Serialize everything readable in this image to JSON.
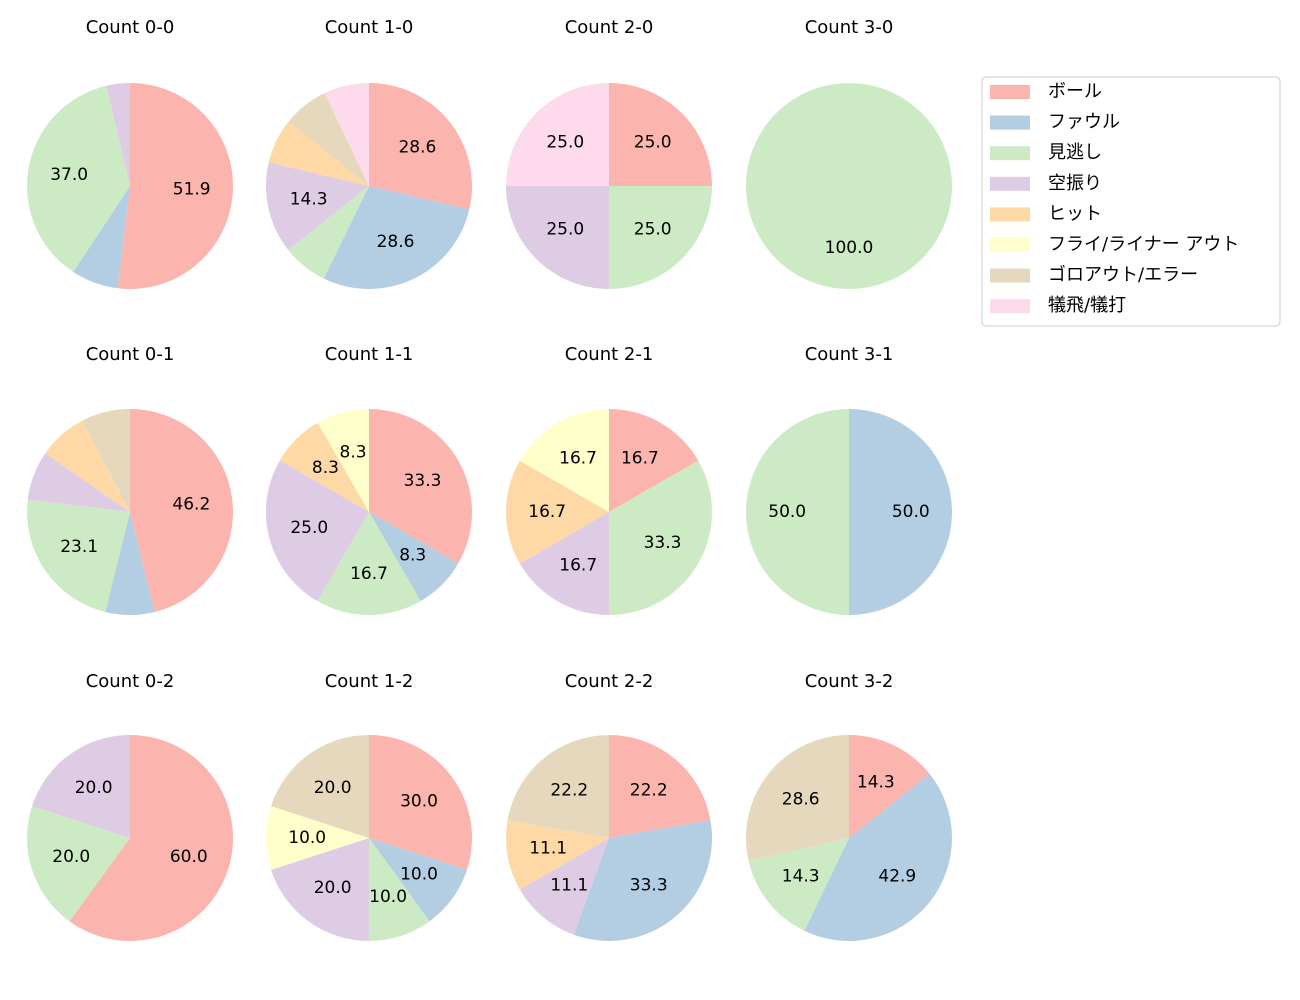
{
  "legend": {
    "items": [
      {
        "name": "ボール",
        "color": "#fbb4ae"
      },
      {
        "name": "ファウル",
        "color": "#b3cde3"
      },
      {
        "name": "見逃し",
        "color": "#ccebc5"
      },
      {
        "name": "空振り",
        "color": "#decbe4"
      },
      {
        "name": "ヒット",
        "color": "#fed9a6"
      },
      {
        "name": "フライ/ライナー アウト",
        "color": "#ffffcc"
      },
      {
        "name": "ゴロアウト/エラー",
        "color": "#e5d8bd"
      },
      {
        "name": "犠飛/犠打",
        "color": "#fddaec"
      }
    ]
  },
  "chart_data": [
    {
      "type": "pie",
      "title": "Count 0-0",
      "categories": [
        "ボール",
        "ファウル",
        "見逃し",
        "空振り"
      ],
      "values": [
        51.9,
        7.4,
        37.0,
        3.7
      ],
      "value_labels": [
        "51.9",
        null,
        "37.0",
        null
      ]
    },
    {
      "type": "pie",
      "title": "Count 1-0",
      "categories": [
        "ボール",
        "ファウル",
        "見逃し",
        "空振り",
        "ヒット",
        "ゴロアウト/エラー",
        "犠飛/犠打"
      ],
      "values": [
        28.6,
        28.6,
        7.1,
        14.3,
        7.1,
        7.1,
        7.1
      ],
      "value_labels": [
        "28.6",
        "28.6",
        null,
        "14.3",
        null,
        null,
        null
      ]
    },
    {
      "type": "pie",
      "title": "Count 2-0",
      "categories": [
        "ボール",
        "見逃し",
        "空振り",
        "犠飛/犠打"
      ],
      "values": [
        25.0,
        25.0,
        25.0,
        25.0
      ],
      "value_labels": [
        "25.0",
        "25.0",
        "25.0",
        "25.0"
      ]
    },
    {
      "type": "pie",
      "title": "Count 3-0",
      "categories": [
        "見逃し"
      ],
      "values": [
        100.0
      ],
      "value_labels": [
        "100.0"
      ]
    },
    {
      "type": "pie",
      "title": "Count 0-1",
      "categories": [
        "ボール",
        "ファウル",
        "見逃し",
        "空振り",
        "ヒット",
        "ゴロアウト/エラー"
      ],
      "values": [
        46.2,
        7.7,
        23.1,
        7.7,
        7.7,
        7.7
      ],
      "value_labels": [
        "46.2",
        null,
        "23.1",
        null,
        null,
        null
      ]
    },
    {
      "type": "pie",
      "title": "Count 1-1",
      "categories": [
        "ボール",
        "ファウル",
        "見逃し",
        "空振り",
        "ヒット",
        "フライ/ライナー アウト"
      ],
      "values": [
        33.3,
        8.3,
        16.7,
        25.0,
        8.3,
        8.3
      ],
      "value_labels": [
        "33.3",
        "8.3",
        "16.7",
        "25.0",
        "8.3",
        "8.3"
      ]
    },
    {
      "type": "pie",
      "title": "Count 2-1",
      "categories": [
        "ボール",
        "見逃し",
        "空振り",
        "ヒット",
        "フライ/ライナー アウト"
      ],
      "values": [
        16.7,
        33.3,
        16.7,
        16.7,
        16.7
      ],
      "value_labels": [
        "16.7",
        "33.3",
        "16.7",
        "16.7",
        "16.7"
      ]
    },
    {
      "type": "pie",
      "title": "Count 3-1",
      "categories": [
        "ファウル",
        "見逃し"
      ],
      "values": [
        50.0,
        50.0
      ],
      "value_labels": [
        "50.0",
        "50.0"
      ]
    },
    {
      "type": "pie",
      "title": "Count 0-2",
      "categories": [
        "ボール",
        "見逃し",
        "空振り"
      ],
      "values": [
        60.0,
        20.0,
        20.0
      ],
      "value_labels": [
        "60.0",
        "20.0",
        "20.0"
      ]
    },
    {
      "type": "pie",
      "title": "Count 1-2",
      "categories": [
        "ボール",
        "ファウル",
        "見逃し",
        "空振り",
        "フライ/ライナー アウト",
        "ゴロアウト/エラー"
      ],
      "values": [
        30.0,
        10.0,
        10.0,
        20.0,
        10.0,
        20.0
      ],
      "value_labels": [
        "30.0",
        "10.0",
        "10.0",
        "20.0",
        "10.0",
        "20.0"
      ]
    },
    {
      "type": "pie",
      "title": "Count 2-2",
      "categories": [
        "ボール",
        "ファウル",
        "空振り",
        "ヒット",
        "ゴロアウト/エラー"
      ],
      "values": [
        22.2,
        33.3,
        11.1,
        11.1,
        22.2
      ],
      "value_labels": [
        "22.2",
        "33.3",
        "11.1",
        "11.1",
        "22.2"
      ]
    },
    {
      "type": "pie",
      "title": "Count 3-2",
      "categories": [
        "ボール",
        "ファウル",
        "見逃し",
        "ゴロアウト/エラー"
      ],
      "values": [
        14.3,
        42.9,
        14.3,
        28.6
      ],
      "value_labels": [
        "14.3",
        "42.9",
        "14.3",
        "28.6"
      ]
    }
  ]
}
